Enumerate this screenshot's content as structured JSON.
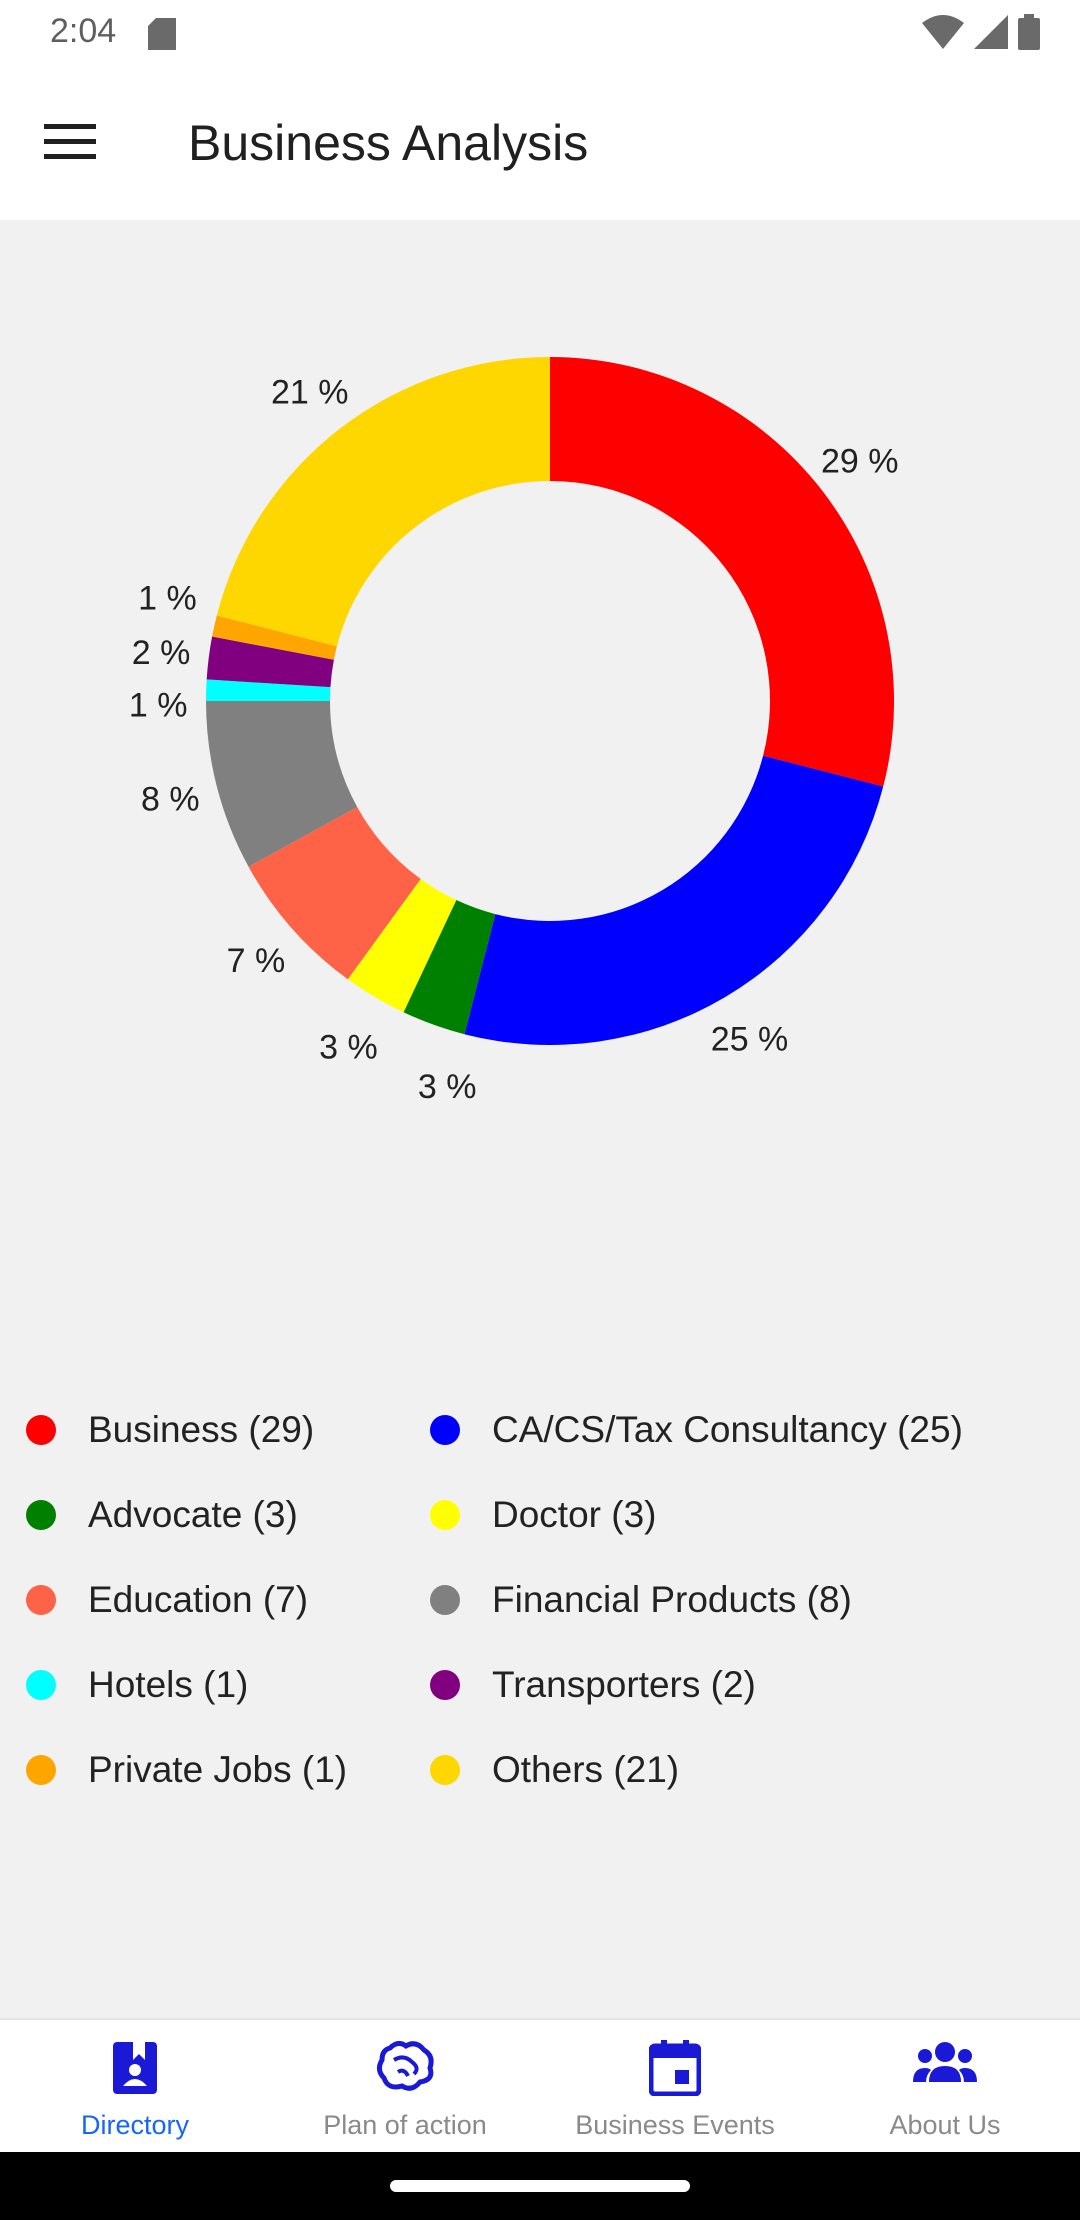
{
  "status_bar": {
    "time": "2:04",
    "icons": [
      "sd-card-icon",
      "wifi-icon",
      "signal-icon",
      "battery-icon"
    ]
  },
  "app_bar": {
    "menu_icon": "menu-icon",
    "title": "Business Analysis"
  },
  "chart_data": {
    "type": "pie",
    "style": "donut",
    "title": "",
    "categories": [
      "Business",
      "CA/CS/Tax Consultancy",
      "Advocate",
      "Doctor",
      "Education",
      "Financial Products",
      "Hotels",
      "Transporters",
      "Private Jobs",
      "Others"
    ],
    "values": [
      29,
      25,
      3,
      3,
      7,
      8,
      1,
      2,
      1,
      21
    ],
    "percent_labels": [
      "29 %",
      "25 %",
      "3 %",
      "3 %",
      "7 %",
      "8 %",
      "1 %",
      "2 %",
      "1 %",
      "21 %"
    ],
    "colors": [
      "#ff0000",
      "#0000ff",
      "#008000",
      "#ffff00",
      "#ff6347",
      "#808080",
      "#00ffff",
      "#800080",
      "#ffa500",
      "#ffd700"
    ],
    "legend_position": "bottom"
  },
  "legend": {
    "items": [
      {
        "label": "Business (29)",
        "color": "#ff0000"
      },
      {
        "label": "CA/CS/Tax Consultancy (25)",
        "color": "#0000ff"
      },
      {
        "label": "Advocate (3)",
        "color": "#008000"
      },
      {
        "label": "Doctor (3)",
        "color": "#ffff00"
      },
      {
        "label": "Education (7)",
        "color": "#ff6347"
      },
      {
        "label": "Financial Products (8)",
        "color": "#808080"
      },
      {
        "label": "Hotels (1)",
        "color": "#00ffff"
      },
      {
        "label": "Transporters (2)",
        "color": "#800080"
      },
      {
        "label": "Private Jobs (1)",
        "color": "#ffa500"
      },
      {
        "label": "Others (21)",
        "color": "#ffd700"
      }
    ]
  },
  "bottom_nav": {
    "accent": "#1565ff",
    "items": [
      {
        "label": "Directory",
        "icon": "directory-icon",
        "active": true
      },
      {
        "label": "Plan of action",
        "icon": "brain-icon",
        "active": false
      },
      {
        "label": "Business Events",
        "icon": "calendar-icon",
        "active": false
      },
      {
        "label": "About Us",
        "icon": "group-icon",
        "active": false
      }
    ]
  }
}
